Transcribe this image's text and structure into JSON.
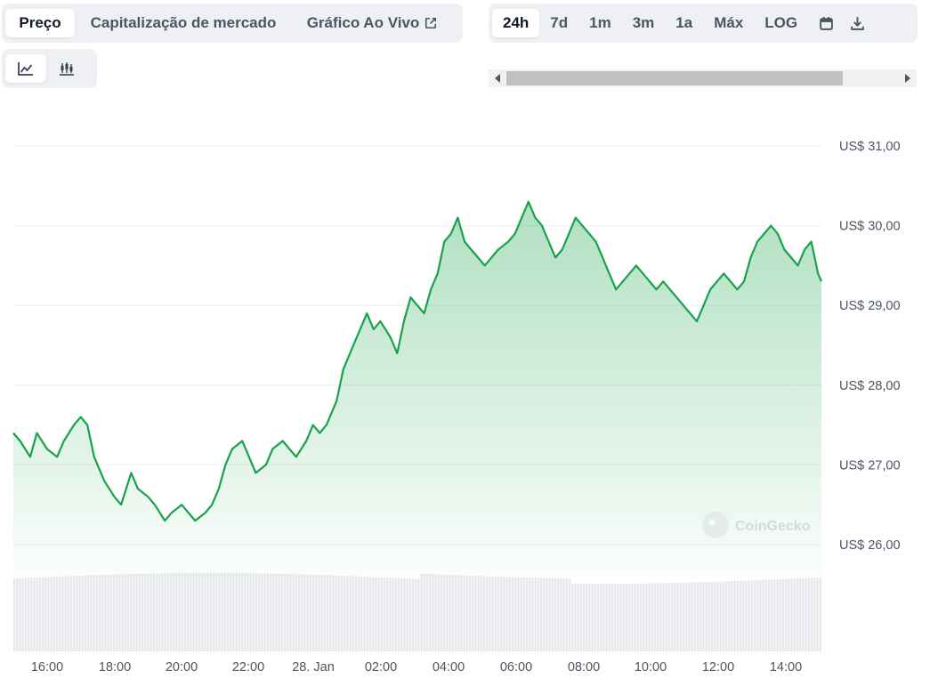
{
  "tabs": [
    {
      "label": "Preço",
      "active": true
    },
    {
      "label": "Capitalização de mercado",
      "active": false
    },
    {
      "label": "Gráfico Ao Vivo",
      "active": false
    }
  ],
  "ranges": [
    {
      "label": "24h",
      "active": true
    },
    {
      "label": "7d",
      "active": false
    },
    {
      "label": "1m",
      "active": false
    },
    {
      "label": "3m",
      "active": false
    },
    {
      "label": "1a",
      "active": false
    },
    {
      "label": "Máx",
      "active": false
    },
    {
      "label": "LOG",
      "active": false
    }
  ],
  "icons": {
    "calendar": "calendar-icon",
    "download": "download-icon",
    "line_chart": "line-chart-icon",
    "candlestick": "candlestick-icon",
    "external_link": "external-link-icon"
  },
  "watermark": "CoinGecko",
  "colors": {
    "line": "#16a34a",
    "fill_top": "#16a34a",
    "volume": "#e5e7eb"
  },
  "chart_data": {
    "type": "area",
    "y_ticks": [
      "US$ 31,00",
      "US$ 30,00",
      "US$ 29,00",
      "US$ 28,00",
      "US$ 27,00",
      "US$ 26,00"
    ],
    "x_ticks": [
      "16:00",
      "18:00",
      "20:00",
      "22:00",
      "28. Jan",
      "02:00",
      "04:00",
      "06:00",
      "08:00",
      "10:00",
      "12:00",
      "14:00"
    ],
    "ylim": [
      25.6,
      31.3
    ],
    "x_range_hours": [
      15.1,
      39.1
    ],
    "series": [
      {
        "values": [
          [
            15.1,
            27.4
          ],
          [
            15.3,
            27.3
          ],
          [
            15.6,
            27.1
          ],
          [
            15.8,
            27.4
          ],
          [
            16.1,
            27.2
          ],
          [
            16.4,
            27.1
          ],
          [
            16.6,
            27.3
          ],
          [
            16.9,
            27.5
          ],
          [
            17.1,
            27.6
          ],
          [
            17.3,
            27.5
          ],
          [
            17.5,
            27.1
          ],
          [
            17.8,
            26.8
          ],
          [
            18.1,
            26.6
          ],
          [
            18.3,
            26.5
          ],
          [
            18.6,
            26.9
          ],
          [
            18.8,
            26.7
          ],
          [
            19.1,
            26.6
          ],
          [
            19.3,
            26.5
          ],
          [
            19.6,
            26.3
          ],
          [
            19.8,
            26.4
          ],
          [
            20.1,
            26.5
          ],
          [
            20.3,
            26.4
          ],
          [
            20.5,
            26.3
          ],
          [
            20.8,
            26.4
          ],
          [
            21.0,
            26.5
          ],
          [
            21.2,
            26.7
          ],
          [
            21.4,
            27.0
          ],
          [
            21.6,
            27.2
          ],
          [
            21.9,
            27.3
          ],
          [
            22.1,
            27.1
          ],
          [
            22.3,
            26.9
          ],
          [
            22.6,
            27.0
          ],
          [
            22.8,
            27.2
          ],
          [
            23.1,
            27.3
          ],
          [
            23.3,
            27.2
          ],
          [
            23.5,
            27.1
          ],
          [
            23.8,
            27.3
          ],
          [
            24.0,
            27.5
          ],
          [
            24.2,
            27.4
          ],
          [
            24.4,
            27.5
          ],
          [
            24.7,
            27.8
          ],
          [
            24.9,
            28.2
          ],
          [
            25.1,
            28.4
          ],
          [
            25.3,
            28.6
          ],
          [
            25.6,
            28.9
          ],
          [
            25.8,
            28.7
          ],
          [
            26.0,
            28.8
          ],
          [
            26.3,
            28.6
          ],
          [
            26.5,
            28.4
          ],
          [
            26.7,
            28.8
          ],
          [
            26.9,
            29.1
          ],
          [
            27.1,
            29.0
          ],
          [
            27.3,
            28.9
          ],
          [
            27.5,
            29.2
          ],
          [
            27.7,
            29.4
          ],
          [
            27.9,
            29.8
          ],
          [
            28.1,
            29.9
          ],
          [
            28.3,
            30.1
          ],
          [
            28.5,
            29.8
          ],
          [
            28.7,
            29.7
          ],
          [
            28.9,
            29.6
          ],
          [
            29.1,
            29.5
          ],
          [
            29.3,
            29.6
          ],
          [
            29.5,
            29.7
          ],
          [
            29.8,
            29.8
          ],
          [
            30.0,
            29.9
          ],
          [
            30.2,
            30.1
          ],
          [
            30.4,
            30.3
          ],
          [
            30.6,
            30.1
          ],
          [
            30.8,
            30.0
          ],
          [
            31.0,
            29.8
          ],
          [
            31.2,
            29.6
          ],
          [
            31.4,
            29.7
          ],
          [
            31.6,
            29.9
          ],
          [
            31.8,
            30.1
          ],
          [
            32.0,
            30.0
          ],
          [
            32.2,
            29.9
          ],
          [
            32.4,
            29.8
          ],
          [
            32.6,
            29.6
          ],
          [
            32.8,
            29.4
          ],
          [
            33.0,
            29.2
          ],
          [
            33.2,
            29.3
          ],
          [
            33.4,
            29.4
          ],
          [
            33.6,
            29.5
          ],
          [
            33.8,
            29.4
          ],
          [
            34.0,
            29.3
          ],
          [
            34.2,
            29.2
          ],
          [
            34.4,
            29.3
          ],
          [
            34.6,
            29.2
          ],
          [
            34.8,
            29.1
          ],
          [
            35.0,
            29.0
          ],
          [
            35.2,
            28.9
          ],
          [
            35.4,
            28.8
          ],
          [
            35.6,
            29.0
          ],
          [
            35.8,
            29.2
          ],
          [
            36.0,
            29.3
          ],
          [
            36.2,
            29.4
          ],
          [
            36.4,
            29.3
          ],
          [
            36.6,
            29.2
          ],
          [
            36.8,
            29.3
          ],
          [
            37.0,
            29.6
          ],
          [
            37.2,
            29.8
          ],
          [
            37.4,
            29.9
          ],
          [
            37.6,
            30.0
          ],
          [
            37.8,
            29.9
          ],
          [
            38.0,
            29.7
          ],
          [
            38.2,
            29.6
          ],
          [
            38.4,
            29.5
          ],
          [
            38.6,
            29.7
          ],
          [
            38.8,
            29.8
          ],
          [
            39.0,
            29.4
          ],
          [
            39.1,
            29.3
          ]
        ]
      }
    ],
    "grid": true,
    "volume_bars": true
  }
}
